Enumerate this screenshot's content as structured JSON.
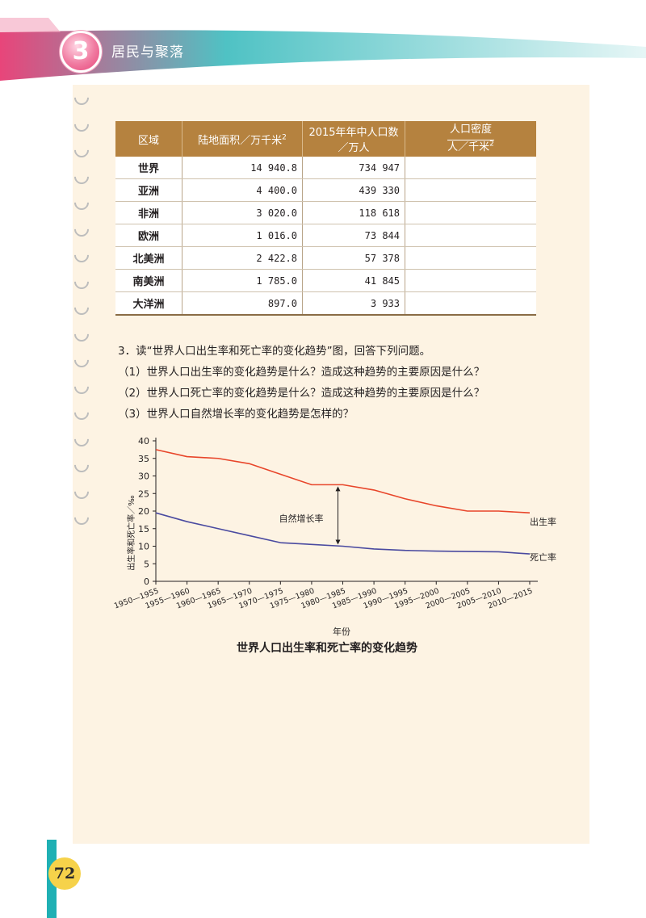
{
  "header": {
    "chapter_number": "3",
    "chapter_title": "居民与聚落",
    "colors": {
      "pink": "#e8457a",
      "teal": "#1fb0b4"
    }
  },
  "page_number": "72",
  "table": {
    "headers": {
      "region": "区域",
      "area": "陆地面积／万千米",
      "area_sup": "2",
      "population": "2015年年中人口数／万人",
      "density_top": "人口密度",
      "density_bottom": "人／千米",
      "density_sup": "2"
    },
    "rows": [
      {
        "region": "世界",
        "area": "14 940.8",
        "population": "734 947",
        "density": ""
      },
      {
        "region": "亚洲",
        "area": "4 400.0",
        "population": "439 330",
        "density": ""
      },
      {
        "region": "非洲",
        "area": "3 020.0",
        "population": "118 618",
        "density": ""
      },
      {
        "region": "欧洲",
        "area": "1 016.0",
        "population": "73 844",
        "density": ""
      },
      {
        "region": "北美洲",
        "area": "2 422.8",
        "population": "57 378",
        "density": ""
      },
      {
        "region": "南美洲",
        "area": "1 785.0",
        "population": "41 845",
        "density": ""
      },
      {
        "region": "大洋洲",
        "area": "897.0",
        "population": "3 933",
        "density": ""
      }
    ]
  },
  "questions": {
    "main": "3．读“世界人口出生率和死亡率的变化趋势”图，回答下列问题。",
    "items": [
      "（1）世界人口出生率的变化趋势是什么？造成这种趋势的主要原因是什么？",
      "（2）世界人口死亡率的变化趋势是什么？造成这种趋势的主要原因是什么？",
      "（3）世界人口自然增长率的变化趋势是怎样的？"
    ]
  },
  "chart_data": {
    "type": "line",
    "title": "世界人口出生率和死亡率的变化趋势",
    "xlabel": "年份",
    "ylabel": "出生率和死亡率／‰",
    "categories": [
      "1950—1955",
      "1955—1960",
      "1960—1965",
      "1965—1970",
      "1970—1975",
      "1975—1980",
      "1980—1985",
      "1985—1990",
      "1990—1995",
      "1995—2000",
      "2000—2005",
      "2005—2010",
      "2010—2015"
    ],
    "ylim": [
      0,
      40
    ],
    "yticks": [
      0,
      5,
      10,
      15,
      20,
      25,
      30,
      35,
      40
    ],
    "annotation": "自然增长率",
    "series": [
      {
        "name": "出生率",
        "color": "#e8452a",
        "values": [
          37.5,
          35.5,
          35,
          33.5,
          30.5,
          27.5,
          27.5,
          26,
          23.5,
          21.5,
          20,
          20,
          19.5
        ]
      },
      {
        "name": "死亡率",
        "color": "#4a4aa0",
        "values": [
          19.5,
          17,
          15,
          13,
          11,
          10.5,
          10,
          9.2,
          8.8,
          8.6,
          8.5,
          8.4,
          7.8
        ]
      }
    ]
  }
}
